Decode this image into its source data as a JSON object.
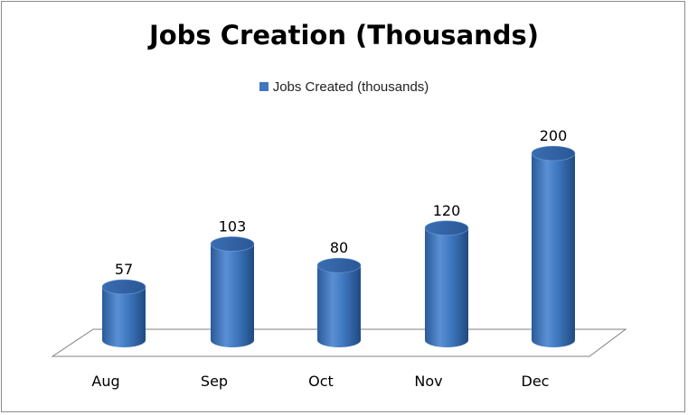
{
  "chart_data": {
    "type": "bar",
    "style": "3d-cylinder",
    "title": "Jobs Creation (Thousands)",
    "categories": [
      "Aug",
      "Sep",
      "Oct",
      "Nov",
      "Dec"
    ],
    "series": [
      {
        "name": "Jobs Created  (thousands)",
        "values": [
          57,
          103,
          80,
          120,
          200
        ]
      }
    ],
    "data_labels": [
      "57",
      "103",
      "80",
      "120",
      "200"
    ],
    "ylim": [
      0,
      200
    ],
    "grid": false,
    "legend_position": "top",
    "colors": {
      "bar": "#3f78c0",
      "bar_dark": "#1f4a80",
      "bar_light": "#7fa6da",
      "floor_stroke": "#808080"
    }
  }
}
